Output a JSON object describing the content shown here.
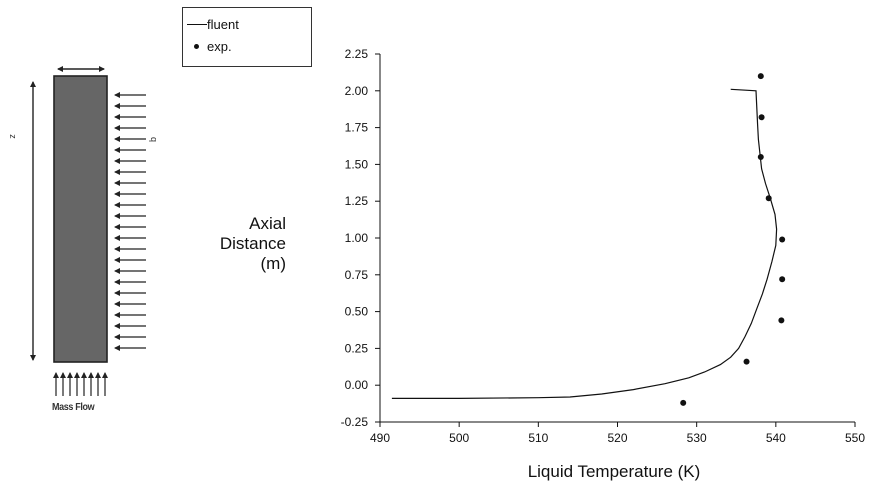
{
  "diagram": {
    "z_label": "z",
    "q_label": "q",
    "mass_flow_label": "Mass Flow"
  },
  "legend": {
    "fluent_label": "fluent",
    "exp_label": "exp."
  },
  "chart_data": {
    "type": "line",
    "title": "",
    "xlabel": "Liquid Temperature (K)",
    "ylabel_lines": [
      "Axial",
      "Distance",
      "(m)"
    ],
    "xlim": [
      490,
      550
    ],
    "ylim": [
      -0.25,
      2.25
    ],
    "xticks": [
      490,
      500,
      510,
      520,
      530,
      540,
      550
    ],
    "yticks": [
      "-0.25",
      "0.00",
      "0.25",
      "0.50",
      "0.75",
      "1.00",
      "1.25",
      "1.50",
      "1.75",
      "2.00",
      "2.25"
    ],
    "grid": false,
    "legend_placement": "top-left",
    "series": [
      {
        "name": "fluent",
        "style": "line",
        "x": [
          491.5,
          500,
          510,
          514,
          518,
          522,
          526,
          529,
          531,
          533,
          534.3,
          535.3,
          536.1,
          536.9,
          537.6,
          538.3,
          538.9,
          539.5,
          540.0,
          540.1,
          539.9,
          539.3,
          538.7,
          538.2,
          538.0,
          537.8,
          537.7,
          537.5,
          534.3
        ],
        "y": [
          -0.09,
          -0.09,
          -0.085,
          -0.08,
          -0.06,
          -0.03,
          0.01,
          0.05,
          0.09,
          0.14,
          0.19,
          0.25,
          0.33,
          0.42,
          0.52,
          0.62,
          0.72,
          0.84,
          0.95,
          1.06,
          1.16,
          1.27,
          1.37,
          1.47,
          1.57,
          1.67,
          1.77,
          2.0,
          2.01
        ]
      },
      {
        "name": "exp.",
        "style": "points",
        "x": [
          528.3,
          536.3,
          540.7,
          540.8,
          540.8,
          539.1,
          538.1,
          538.2,
          538.1
        ],
        "y": [
          -0.12,
          0.16,
          0.44,
          0.72,
          0.99,
          1.27,
          1.55,
          1.82,
          2.1
        ]
      }
    ],
    "color": "#111111"
  }
}
